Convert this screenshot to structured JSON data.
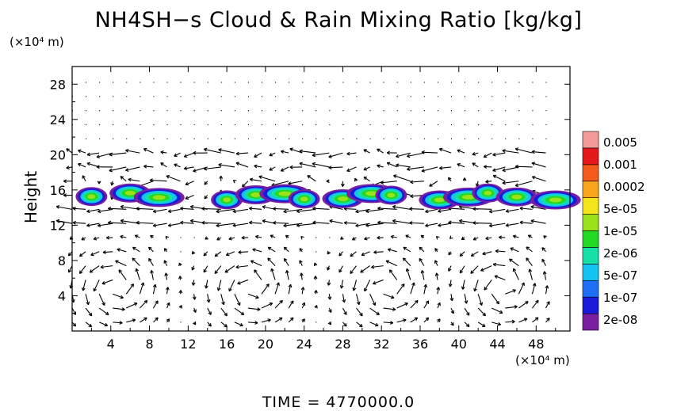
{
  "chart_data": {
    "type": "contour-vector",
    "title": "NH4SH−s Cloud & Rain Mixing Ratio [kg/kg]",
    "ylabel": "Height",
    "y_unit": "(×10⁴ m)",
    "x_unit": "(×10⁴ m)",
    "xlim": [
      0,
      51.5
    ],
    "ylim": [
      0,
      30
    ],
    "x_ticks": [
      4,
      8,
      12,
      16,
      20,
      24,
      28,
      32,
      36,
      40,
      44,
      48
    ],
    "y_ticks": [
      4,
      8,
      12,
      16,
      20,
      24,
      28
    ],
    "colorbar": {
      "levels": [
        "2e-08",
        "1e-07",
        "5e-07",
        "2e-06",
        "1e-05",
        "5e-05",
        "0.0002",
        "0.001",
        "0.005"
      ],
      "colors": [
        "#7a1fa0",
        "#1a1ad8",
        "#1f6ff5",
        "#14c3f0",
        "#16e0a8",
        "#22d822",
        "#9ae21a",
        "#f4e41a",
        "#f7a51c",
        "#f45a1c",
        "#e41818",
        "#f49a9a"
      ]
    },
    "cloud_layer": {
      "height_range": [
        14,
        16.5
      ],
      "blobs_x_center": [
        2,
        6,
        9,
        16,
        19,
        22,
        24,
        28,
        31,
        33,
        38,
        41,
        43,
        46,
        50
      ]
    },
    "wind_vectors": "low-level circulation cells near x = 4, 18, 32, 44 and strong westward flow near heights 14 and 18"
  },
  "time_label": "TIME = 4770000.0"
}
